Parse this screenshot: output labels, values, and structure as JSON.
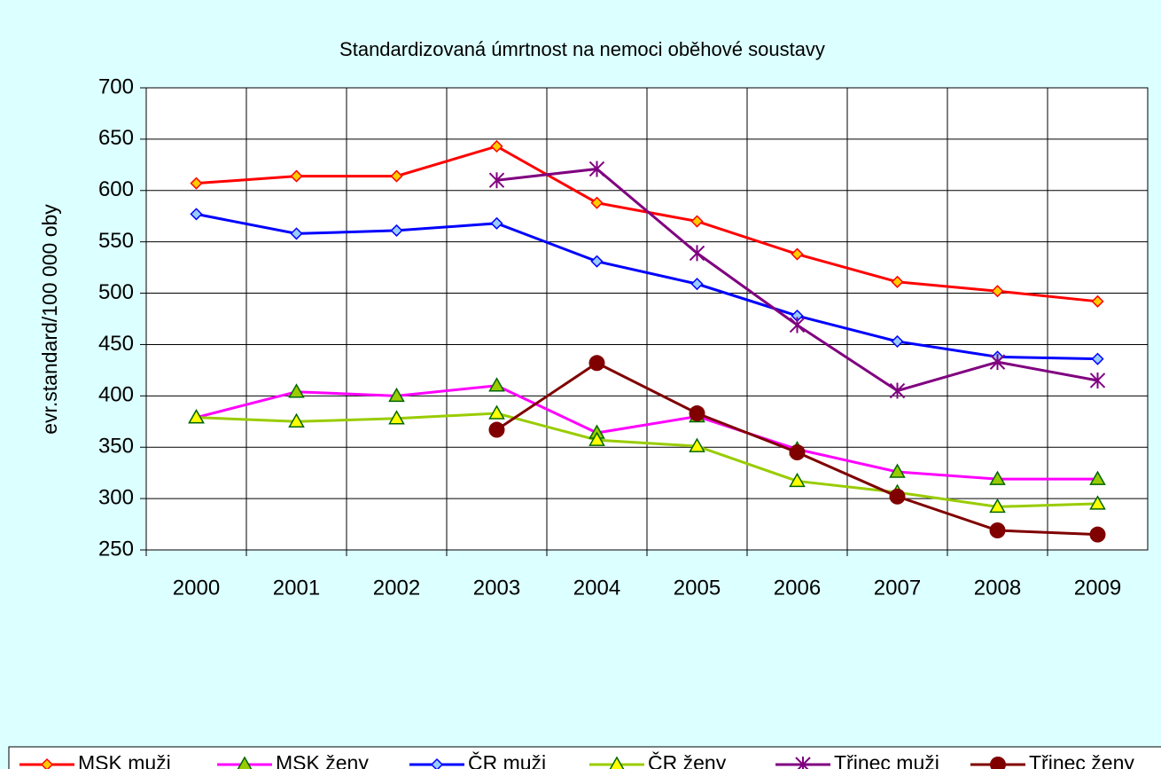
{
  "chart_data": {
    "type": "line",
    "title": "Standardizovaná úmrtnost na nemoci oběhové soustavy",
    "ylabel": "evr.standard/100 000 oby",
    "categories": [
      "2000",
      "2001",
      "2002",
      "2003",
      "2004",
      "2005",
      "2006",
      "2007",
      "2008",
      "2009"
    ],
    "ylim": [
      250,
      700
    ],
    "yticks": [
      250,
      300,
      350,
      400,
      450,
      500,
      550,
      600,
      650,
      700
    ],
    "grid": true,
    "legend": "bottom",
    "series": [
      {
        "name": "MSK muži",
        "color": "#ff0000",
        "marker": "diamond",
        "marker_color": "#ffcc00",
        "values": [
          607,
          614,
          614,
          643,
          588,
          570,
          538,
          511,
          502,
          492
        ]
      },
      {
        "name": "MSK ženy",
        "color": "#ff00ff",
        "marker": "triangle",
        "marker_color": "#99cc00",
        "values": [
          379,
          404,
          400,
          410,
          364,
          380,
          348,
          326,
          319,
          319
        ]
      },
      {
        "name": "ČR muži",
        "color": "#0000ff",
        "marker": "diamond",
        "marker_color": "#99ccff",
        "values": [
          577,
          558,
          561,
          568,
          531,
          509,
          478,
          453,
          438,
          436
        ]
      },
      {
        "name": "ČR ženy",
        "color": "#99cc00",
        "marker": "triangle",
        "marker_color": "#ffff00",
        "values": [
          379,
          375,
          378,
          383,
          357,
          351,
          317,
          306,
          292,
          295
        ]
      },
      {
        "name": "Třinec muži",
        "color": "#800080",
        "marker": "star",
        "marker_color": "#800080",
        "values": [
          null,
          null,
          null,
          610,
          621,
          539,
          469,
          405,
          433,
          415
        ]
      },
      {
        "name": "Třinec ženy",
        "color": "#800000",
        "marker": "circle",
        "marker_color": "#800000",
        "values": [
          null,
          null,
          null,
          367,
          432,
          383,
          345,
          302,
          269,
          265
        ]
      }
    ]
  }
}
